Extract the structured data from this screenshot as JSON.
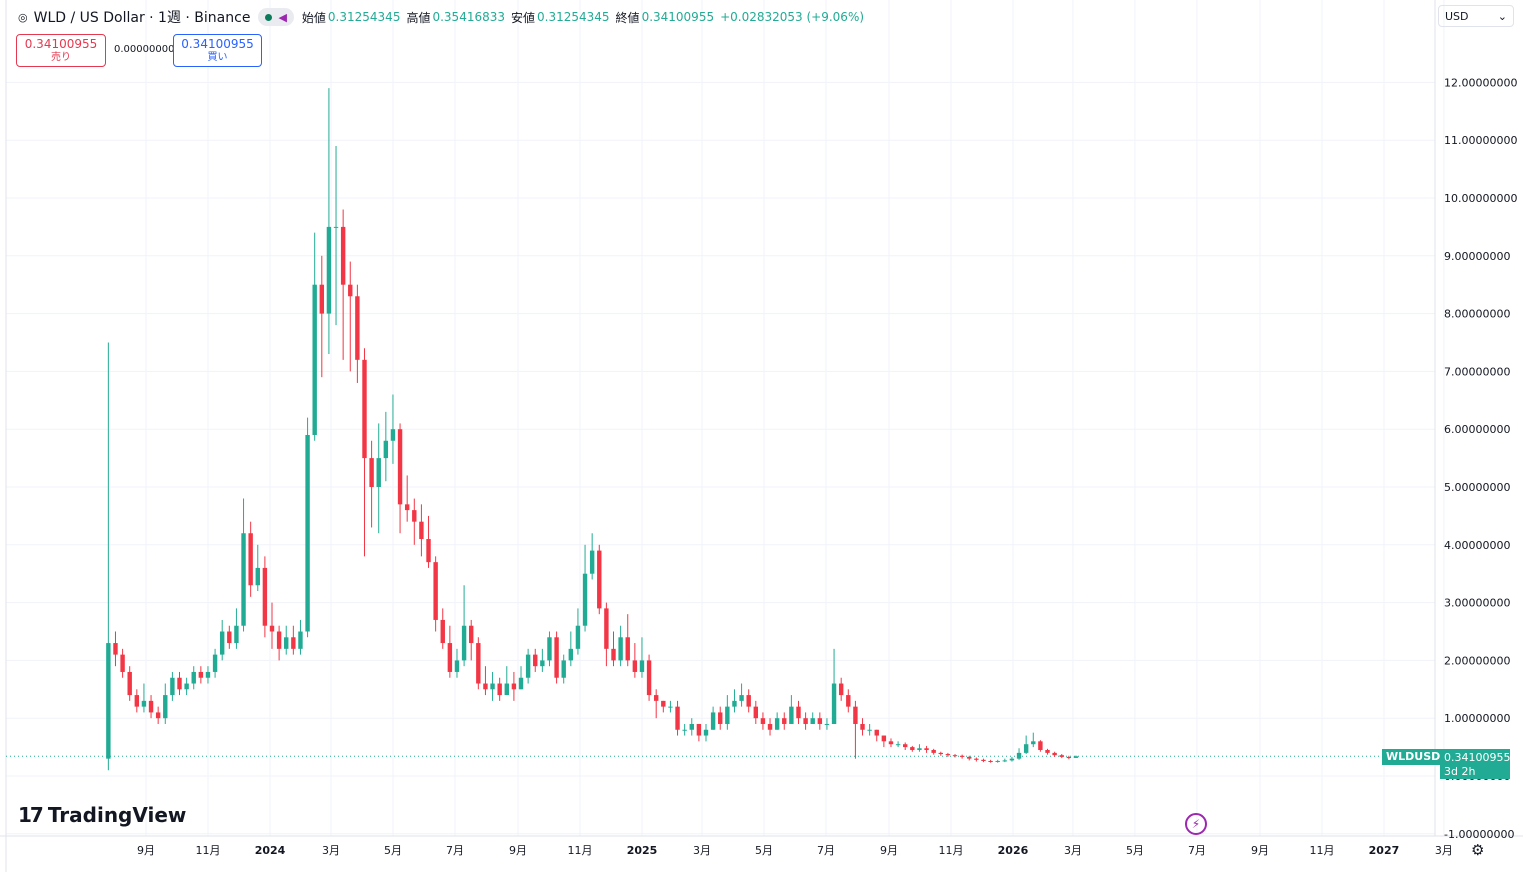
{
  "header": {
    "symbol": "WLD / US Dollar · 1週 · Binance",
    "open_label": "始値",
    "open": "0.31254345",
    "high_label": "高値",
    "high": "0.35416833",
    "low_label": "安値",
    "low": "0.31254345",
    "close_label": "終値",
    "close": "0.34100955",
    "change": "+0.02832053 (+9.06%)"
  },
  "trade": {
    "sell_price": "0.34100955",
    "sell_label": "売り",
    "spread": "0.00000000",
    "buy_price": "0.34100955",
    "buy_label": "買い"
  },
  "currency": "USD",
  "logo": "TradingView",
  "last_price_tag": {
    "symbol": "WLDUSD",
    "price": "0.34100955",
    "countdown": "3d 2h"
  },
  "colors": {
    "up": "#22ab94",
    "down": "#f23645",
    "grid": "#f0f3fa",
    "accent": "#9c27b0"
  },
  "chart_data": {
    "type": "candlestick",
    "title": "WLD / US Dollar · 1週 · Binance",
    "ylim": [
      -1,
      12.9
    ],
    "y_ticks": [
      12,
      11,
      10,
      9,
      8,
      7,
      6,
      5,
      4,
      3,
      2,
      1,
      0,
      -1
    ],
    "y_tick_labels": [
      "12.00000000",
      "11.00000000",
      "10.00000000",
      "9.00000000",
      "8.00000000",
      "7.00000000",
      "6.00000000",
      "5.00000000",
      "4.00000000",
      "3.00000000",
      "2.00000000",
      "1.00000000",
      "0.00000000",
      "-1.00000000"
    ],
    "x_ticks": [
      {
        "label": "9月",
        "date": "2023-09-01"
      },
      {
        "label": "11月",
        "date": "2023-11-01"
      },
      {
        "label": "2024",
        "date": "2024-01-01"
      },
      {
        "label": "3月",
        "date": "2024-03-01"
      },
      {
        "label": "5月",
        "date": "2024-05-01"
      },
      {
        "label": "7月",
        "date": "2024-07-01"
      },
      {
        "label": "9月",
        "date": "2024-09-01"
      },
      {
        "label": "11月",
        "date": "2024-11-01"
      },
      {
        "label": "2025",
        "date": "2025-01-01"
      },
      {
        "label": "3月",
        "date": "2025-03-01"
      },
      {
        "label": "5月",
        "date": "2025-05-01"
      },
      {
        "label": "7月",
        "date": "2025-07-01"
      },
      {
        "label": "9月",
        "date": "2025-09-01"
      },
      {
        "label": "11月",
        "date": "2025-11-01"
      },
      {
        "label": "2026",
        "date": "2026-01-01"
      },
      {
        "label": "3月",
        "date": "2026-03-01"
      },
      {
        "label": "5月",
        "date": "2026-05-01"
      },
      {
        "label": "7月",
        "date": "2026-07-01"
      },
      {
        "label": "9月",
        "date": "2026-09-01"
      },
      {
        "label": "11月",
        "date": "2026-11-01"
      },
      {
        "label": "2027",
        "date": "2027-01-01"
      },
      {
        "label": "3月",
        "date": "2027-03-01"
      }
    ],
    "start_date": "2023-07-24",
    "interval": "1W",
    "last_price": 0.34100955,
    "candles": [
      [
        0.3,
        2.3,
        7.5,
        0.1
      ],
      [
        2.3,
        2.1,
        2.5,
        1.9
      ],
      [
        2.1,
        1.8,
        2.2,
        1.7
      ],
      [
        1.8,
        1.4,
        1.9,
        1.3
      ],
      [
        1.4,
        1.2,
        1.5,
        1.1
      ],
      [
        1.2,
        1.3,
        1.6,
        1.1
      ],
      [
        1.3,
        1.1,
        1.4,
        1.0
      ],
      [
        1.1,
        1.0,
        1.2,
        0.9
      ],
      [
        1.0,
        1.4,
        1.6,
        0.9
      ],
      [
        1.4,
        1.7,
        1.8,
        1.3
      ],
      [
        1.7,
        1.5,
        1.8,
        1.4
      ],
      [
        1.5,
        1.6,
        1.7,
        1.4
      ],
      [
        1.6,
        1.8,
        1.9,
        1.5
      ],
      [
        1.8,
        1.7,
        1.9,
        1.6
      ],
      [
        1.7,
        1.8,
        1.9,
        1.6
      ],
      [
        1.8,
        2.1,
        2.2,
        1.7
      ],
      [
        2.1,
        2.5,
        2.7,
        2.0
      ],
      [
        2.5,
        2.3,
        2.6,
        2.2
      ],
      [
        2.3,
        2.6,
        2.9,
        2.2
      ],
      [
        2.6,
        4.2,
        4.8,
        2.5
      ],
      [
        4.2,
        3.3,
        4.4,
        3.1
      ],
      [
        3.3,
        3.6,
        4.0,
        3.2
      ],
      [
        3.6,
        2.6,
        3.8,
        2.4
      ],
      [
        2.6,
        2.5,
        3.0,
        2.2
      ],
      [
        2.5,
        2.2,
        2.6,
        2.0
      ],
      [
        2.2,
        2.4,
        2.6,
        2.1
      ],
      [
        2.4,
        2.2,
        2.6,
        2.1
      ],
      [
        2.2,
        2.5,
        2.7,
        2.1
      ],
      [
        2.5,
        5.9,
        6.2,
        2.4
      ],
      [
        5.9,
        8.5,
        9.4,
        5.8
      ],
      [
        8.5,
        8.0,
        9.0,
        6.9
      ],
      [
        8.0,
        9.5,
        11.9,
        7.3
      ],
      [
        9.5,
        9.5,
        10.9,
        7.8
      ],
      [
        9.5,
        8.5,
        9.8,
        7.2
      ],
      [
        8.5,
        8.3,
        8.9,
        7.0
      ],
      [
        8.3,
        7.2,
        8.5,
        6.8
      ],
      [
        7.2,
        5.5,
        7.4,
        3.8
      ],
      [
        5.5,
        5.0,
        5.8,
        4.3
      ],
      [
        5.0,
        5.5,
        6.1,
        4.2
      ],
      [
        5.5,
        5.8,
        6.3,
        5.1
      ],
      [
        5.8,
        6.0,
        6.6,
        5.4
      ],
      [
        6.0,
        4.7,
        6.1,
        4.2
      ],
      [
        4.7,
        4.6,
        5.2,
        4.4
      ],
      [
        4.6,
        4.4,
        4.8,
        4.0
      ],
      [
        4.4,
        4.1,
        4.7,
        3.8
      ],
      [
        4.1,
        3.7,
        4.5,
        3.6
      ],
      [
        3.7,
        2.7,
        3.8,
        2.5
      ],
      [
        2.7,
        2.3,
        2.9,
        2.2
      ],
      [
        2.3,
        1.8,
        2.6,
        1.7
      ],
      [
        1.8,
        2.0,
        2.2,
        1.7
      ],
      [
        2.0,
        2.6,
        3.3,
        1.9
      ],
      [
        2.6,
        2.3,
        2.7,
        2.0
      ],
      [
        2.3,
        1.6,
        2.4,
        1.5
      ],
      [
        1.6,
        1.5,
        1.9,
        1.4
      ],
      [
        1.5,
        1.6,
        1.8,
        1.3
      ],
      [
        1.6,
        1.4,
        1.7,
        1.3
      ],
      [
        1.4,
        1.6,
        1.9,
        1.4
      ],
      [
        1.6,
        1.5,
        1.8,
        1.3
      ],
      [
        1.5,
        1.7,
        1.9,
        1.5
      ],
      [
        1.7,
        2.1,
        2.2,
        1.6
      ],
      [
        2.1,
        1.9,
        2.2,
        1.8
      ],
      [
        1.9,
        2.0,
        2.2,
        1.8
      ],
      [
        2.0,
        2.4,
        2.5,
        1.9
      ],
      [
        2.4,
        1.7,
        2.5,
        1.6
      ],
      [
        1.7,
        2.0,
        2.1,
        1.6
      ],
      [
        2.0,
        2.2,
        2.5,
        1.9
      ],
      [
        2.2,
        2.6,
        2.9,
        2.1
      ],
      [
        2.6,
        3.5,
        4.0,
        2.5
      ],
      [
        3.5,
        3.9,
        4.2,
        3.4
      ],
      [
        3.9,
        2.9,
        4.0,
        2.8
      ],
      [
        2.9,
        2.2,
        3.0,
        1.9
      ],
      [
        2.2,
        2.0,
        2.5,
        1.9
      ],
      [
        2.0,
        2.4,
        2.6,
        1.9
      ],
      [
        2.4,
        2.0,
        2.8,
        1.9
      ],
      [
        2.0,
        1.8,
        2.3,
        1.7
      ],
      [
        1.8,
        2.0,
        2.4,
        1.7
      ],
      [
        2.0,
        1.4,
        2.1,
        1.3
      ],
      [
        1.4,
        1.3,
        1.5,
        1.0
      ],
      [
        1.3,
        1.2,
        1.3,
        1.1
      ],
      [
        1.2,
        1.2,
        1.3,
        1.1
      ],
      [
        1.2,
        0.8,
        1.3,
        0.7
      ],
      [
        0.8,
        0.8,
        0.9,
        0.7
      ],
      [
        0.8,
        0.9,
        1.0,
        0.7
      ],
      [
        0.9,
        0.7,
        0.9,
        0.6
      ],
      [
        0.7,
        0.8,
        0.9,
        0.6
      ],
      [
        0.8,
        1.1,
        1.2,
        0.8
      ],
      [
        1.1,
        0.9,
        1.2,
        0.8
      ],
      [
        0.9,
        1.2,
        1.4,
        0.8
      ],
      [
        1.2,
        1.3,
        1.5,
        1.1
      ],
      [
        1.3,
        1.4,
        1.6,
        1.2
      ],
      [
        1.4,
        1.2,
        1.5,
        1.1
      ],
      [
        1.2,
        1.0,
        1.3,
        0.9
      ],
      [
        1.0,
        0.9,
        1.1,
        0.8
      ],
      [
        0.9,
        0.8,
        1.0,
        0.7
      ],
      [
        0.8,
        1.0,
        1.1,
        0.8
      ],
      [
        1.0,
        0.9,
        1.1,
        0.8
      ],
      [
        0.9,
        1.2,
        1.4,
        0.9
      ],
      [
        1.2,
        1.0,
        1.3,
        0.9
      ],
      [
        1.0,
        0.9,
        1.1,
        0.8
      ],
      [
        0.9,
        1.0,
        1.1,
        0.9
      ],
      [
        1.0,
        0.9,
        1.1,
        0.8
      ],
      [
        0.9,
        0.9,
        1.0,
        0.8
      ],
      [
        0.9,
        1.6,
        2.2,
        0.9
      ],
      [
        1.6,
        1.4,
        1.7,
        1.3
      ],
      [
        1.4,
        1.2,
        1.5,
        1.1
      ],
      [
        1.2,
        0.9,
        1.3,
        0.3
      ],
      [
        0.9,
        0.8,
        1.0,
        0.7
      ],
      [
        0.8,
        0.8,
        0.9,
        0.7
      ],
      [
        0.8,
        0.7,
        0.8,
        0.6
      ],
      [
        0.7,
        0.6,
        0.7,
        0.5
      ],
      [
        0.6,
        0.55,
        0.65,
        0.5
      ],
      [
        0.55,
        0.55,
        0.6,
        0.5
      ],
      [
        0.55,
        0.5,
        0.58,
        0.45
      ],
      [
        0.5,
        0.45,
        0.52,
        0.42
      ],
      [
        0.45,
        0.48,
        0.55,
        0.42
      ],
      [
        0.48,
        0.45,
        0.52,
        0.4
      ],
      [
        0.45,
        0.4,
        0.47,
        0.37
      ],
      [
        0.4,
        0.38,
        0.42,
        0.35
      ],
      [
        0.38,
        0.36,
        0.4,
        0.33
      ],
      [
        0.36,
        0.35,
        0.38,
        0.32
      ],
      [
        0.35,
        0.33,
        0.37,
        0.3
      ],
      [
        0.33,
        0.3,
        0.35,
        0.27
      ],
      [
        0.3,
        0.28,
        0.32,
        0.25
      ],
      [
        0.28,
        0.26,
        0.3,
        0.24
      ],
      [
        0.26,
        0.25,
        0.28,
        0.23
      ],
      [
        0.25,
        0.26,
        0.28,
        0.23
      ],
      [
        0.26,
        0.27,
        0.3,
        0.24
      ],
      [
        0.27,
        0.3,
        0.33,
        0.25
      ],
      [
        0.3,
        0.4,
        0.48,
        0.28
      ],
      [
        0.4,
        0.55,
        0.7,
        0.38
      ],
      [
        0.55,
        0.6,
        0.75,
        0.5
      ],
      [
        0.6,
        0.45,
        0.62,
        0.42
      ],
      [
        0.45,
        0.4,
        0.47,
        0.37
      ],
      [
        0.4,
        0.36,
        0.42,
        0.33
      ],
      [
        0.36,
        0.33,
        0.38,
        0.31
      ],
      [
        0.33,
        0.31,
        0.35,
        0.29
      ],
      [
        0.31254345,
        0.34100955,
        0.35416833,
        0.31254345
      ]
    ]
  }
}
